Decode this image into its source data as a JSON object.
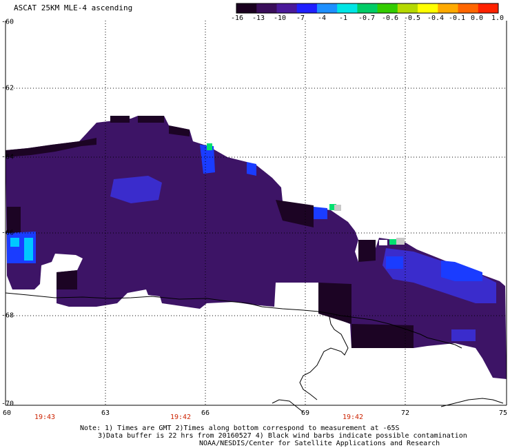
{
  "title": "ASCAT 25KM MLE-4 ascending",
  "colorbar": {
    "labels": [
      "-16",
      "-13",
      "-10",
      "-7",
      "-4",
      "-1",
      "-0.7",
      "-0.6",
      "-0.5",
      "-0.4",
      "-0.1",
      "0.0",
      "1.0"
    ],
    "colors": [
      "#1a001f",
      "#3a0e5a",
      "#4a1a9a",
      "#2020ff",
      "#1e90ff",
      "#00e5e5",
      "#00cc66",
      "#33cc00",
      "#b5d900",
      "#ffff00",
      "#ffaa00",
      "#ff6600",
      "#ff2200"
    ]
  },
  "axes": {
    "lat_labels": [
      "-60",
      "-62",
      "-64",
      "-66",
      "-68",
      "-70"
    ],
    "lon_labels": [
      "60",
      "63",
      "66",
      "69",
      "72",
      "75"
    ]
  },
  "times": [
    "19:43",
    "19:42",
    "19:42"
  ],
  "notes": {
    "line1": "Note: 1) Times are GMT 2)Times along bottom correspond to measurement at -65S",
    "line2": "3)Data buffer is 22 hrs from 20160527 4) Black wind barbs indicate possible contamination",
    "line3": "NOAA/NESDIS/Center for Satellite Applications and Research"
  },
  "palette": {
    "field": "#3d1466",
    "field_dark": "#1c0424",
    "field_blue": "#3a2ccc",
    "field_bright": "#1a3cff",
    "cyan": "#00c8ff",
    "green": "#00e070"
  }
}
